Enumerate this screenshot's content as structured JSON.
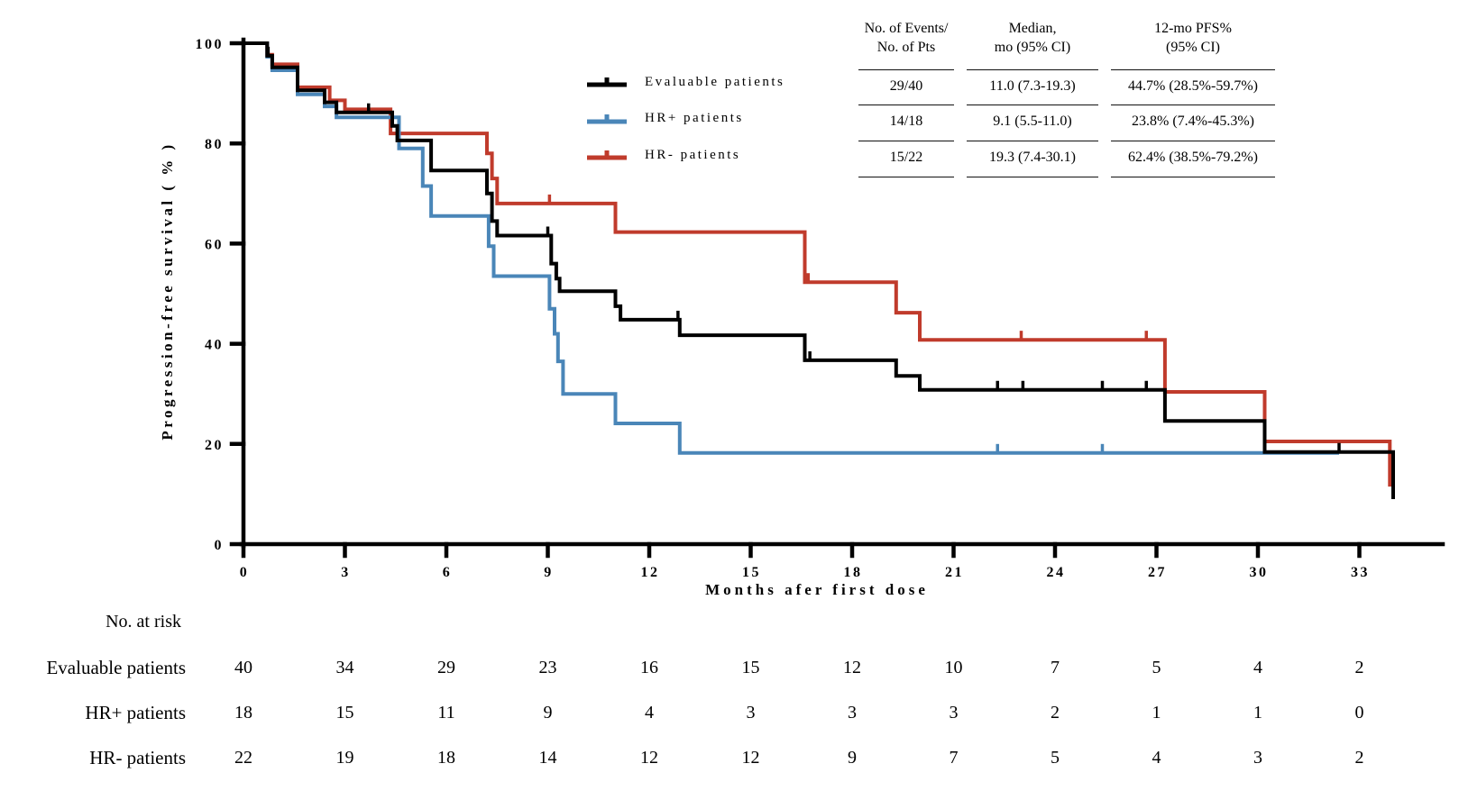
{
  "chart_data": {
    "type": "line",
    "subtype": "kaplan-meier-step",
    "title": "",
    "xlabel": "Months afer first dose",
    "ylabel": "Progression-free survival (%)",
    "xlim": [
      0,
      35.5
    ],
    "ylim": [
      0,
      100
    ],
    "x_ticks": [
      0,
      3,
      6,
      9,
      12,
      15,
      18,
      21,
      24,
      27,
      30,
      33
    ],
    "y_ticks": [
      0,
      20,
      40,
      60,
      80,
      100
    ],
    "grid": false,
    "legend_position": "upper-center-left",
    "axis_color": "#000000",
    "series": [
      {
        "name": "Evaluable patients",
        "color": "#000000",
        "steps": [
          [
            0,
            100
          ],
          [
            0.7,
            100
          ],
          [
            0.7,
            97.5
          ],
          [
            0.85,
            97.5
          ],
          [
            0.85,
            95.2
          ],
          [
            1.6,
            95.2
          ],
          [
            1.6,
            90.6
          ],
          [
            2.4,
            90.6
          ],
          [
            2.4,
            88.2
          ],
          [
            2.75,
            88.2
          ],
          [
            2.75,
            86.2
          ],
          [
            4.4,
            86.2
          ],
          [
            4.4,
            83.5
          ],
          [
            4.55,
            83.5
          ],
          [
            4.55,
            80.6
          ],
          [
            5.55,
            80.6
          ],
          [
            5.55,
            74.6
          ],
          [
            7.2,
            74.6
          ],
          [
            7.2,
            70
          ],
          [
            7.35,
            70
          ],
          [
            7.35,
            64.5
          ],
          [
            7.5,
            64.5
          ],
          [
            7.5,
            61.6
          ],
          [
            9.1,
            61.6
          ],
          [
            9.1,
            56
          ],
          [
            9.25,
            56
          ],
          [
            9.25,
            53
          ],
          [
            9.35,
            53
          ],
          [
            9.35,
            50.5
          ],
          [
            11.0,
            50.5
          ],
          [
            11.0,
            47.5
          ],
          [
            11.15,
            47.5
          ],
          [
            11.15,
            44.8
          ],
          [
            12.9,
            44.8
          ],
          [
            12.9,
            41.7
          ],
          [
            16.6,
            41.7
          ],
          [
            16.6,
            36.7
          ],
          [
            19.3,
            36.7
          ],
          [
            19.3,
            33.6
          ],
          [
            20.0,
            33.6
          ],
          [
            20.0,
            30.8
          ],
          [
            27.25,
            30.8
          ],
          [
            27.25,
            24.6
          ],
          [
            30.2,
            24.6
          ],
          [
            30.2,
            18.4
          ],
          [
            34.0,
            18.4
          ],
          [
            34.0,
            9.0
          ]
        ],
        "censors": [
          [
            0.73,
            97.5
          ],
          [
            3.7,
            86.2
          ],
          [
            9.0,
            61.6
          ],
          [
            12.85,
            44.8
          ],
          [
            16.75,
            36.7
          ],
          [
            22.3,
            30.8
          ],
          [
            23.05,
            30.8
          ],
          [
            25.4,
            30.8
          ],
          [
            26.7,
            30.8
          ],
          [
            32.4,
            18.4
          ]
        ]
      },
      {
        "name": "HR+ patients",
        "color": "#4A86B8",
        "steps": [
          [
            0,
            100
          ],
          [
            0.7,
            100
          ],
          [
            0.7,
            97.3
          ],
          [
            0.85,
            97.3
          ],
          [
            0.85,
            94.6
          ],
          [
            1.6,
            94.6
          ],
          [
            1.6,
            89.8
          ],
          [
            2.4,
            89.8
          ],
          [
            2.4,
            87.4
          ],
          [
            2.75,
            87.4
          ],
          [
            2.75,
            85.2
          ],
          [
            4.6,
            85.2
          ],
          [
            4.6,
            79.0
          ],
          [
            5.3,
            79.0
          ],
          [
            5.3,
            71.5
          ],
          [
            5.55,
            71.5
          ],
          [
            5.55,
            65.5
          ],
          [
            7.25,
            65.5
          ],
          [
            7.25,
            59.5
          ],
          [
            7.4,
            59.5
          ],
          [
            7.4,
            53.5
          ],
          [
            9.05,
            53.5
          ],
          [
            9.05,
            47.0
          ],
          [
            9.2,
            47.0
          ],
          [
            9.2,
            42.0
          ],
          [
            9.3,
            42.0
          ],
          [
            9.3,
            36.5
          ],
          [
            9.45,
            36.5
          ],
          [
            9.45,
            30.0
          ],
          [
            11.0,
            30.0
          ],
          [
            11.0,
            24.1
          ],
          [
            12.9,
            24.1
          ],
          [
            12.9,
            18.2
          ],
          [
            32.4,
            18.2
          ]
        ],
        "censors": [
          [
            22.3,
            18.2
          ],
          [
            25.4,
            18.2
          ]
        ]
      },
      {
        "name": "HR- patients",
        "color": "#C03B2C",
        "steps": [
          [
            0,
            100
          ],
          [
            0.7,
            100
          ],
          [
            0.7,
            97.7
          ],
          [
            0.85,
            97.7
          ],
          [
            0.85,
            95.8
          ],
          [
            1.6,
            95.8
          ],
          [
            1.6,
            91.2
          ],
          [
            2.55,
            91.2
          ],
          [
            2.55,
            88.6
          ],
          [
            3.0,
            88.6
          ],
          [
            3.0,
            86.8
          ],
          [
            4.35,
            86.8
          ],
          [
            4.35,
            82.0
          ],
          [
            7.2,
            82.0
          ],
          [
            7.2,
            78.0
          ],
          [
            7.35,
            78.0
          ],
          [
            7.35,
            73.0
          ],
          [
            7.5,
            73.0
          ],
          [
            7.5,
            68.0
          ],
          [
            11.0,
            68.0
          ],
          [
            11.0,
            62.3
          ],
          [
            16.6,
            62.3
          ],
          [
            16.6,
            52.3
          ],
          [
            19.3,
            52.3
          ],
          [
            19.3,
            46.2
          ],
          [
            20.0,
            46.2
          ],
          [
            20.0,
            40.8
          ],
          [
            27.25,
            40.8
          ],
          [
            27.25,
            30.4
          ],
          [
            30.2,
            30.4
          ],
          [
            30.2,
            20.5
          ],
          [
            33.9,
            20.5
          ],
          [
            33.9,
            11.5
          ]
        ],
        "censors": [
          [
            9.05,
            68.0
          ],
          [
            16.7,
            52.3
          ],
          [
            23.0,
            40.8
          ],
          [
            26.7,
            40.8
          ]
        ]
      }
    ]
  },
  "legend": {
    "items": [
      {
        "label": "Evaluable patients"
      },
      {
        "label": "HR+ patients"
      },
      {
        "label": "HR- patients"
      }
    ]
  },
  "stats_table": {
    "headers": [
      {
        "line1": "No. of Events/",
        "line2": "No. of Pts"
      },
      {
        "line1": "Median,",
        "line2": "mo (95% CI)"
      },
      {
        "line1": "12-mo PFS%",
        "line2": "(95% CI)"
      }
    ],
    "rows": [
      {
        "events": "29/40",
        "median": "11.0 (7.3-19.3)",
        "pfs12": "44.7% (28.5%-59.7%)"
      },
      {
        "events": "14/18",
        "median": "9.1 (5.5-11.0)",
        "pfs12": "23.8% (7.4%-45.3%)"
      },
      {
        "events": "15/22",
        "median": "19.3 (7.4-30.1)",
        "pfs12": "62.4% (38.5%-79.2%)"
      }
    ]
  },
  "axis_titles": {
    "y": "Progression-free survival ( % )",
    "x": "Months afer first dose"
  },
  "at_risk": {
    "title": "No. at risk",
    "months": [
      0,
      3,
      6,
      9,
      12,
      15,
      18,
      21,
      24,
      27,
      30,
      33
    ],
    "rows": [
      {
        "label": "Evaluable patients",
        "counts": [
          "40",
          "34",
          "29",
          "23",
          "16",
          "15",
          "12",
          "10",
          "7",
          "5",
          "4",
          "2"
        ]
      },
      {
        "label": "HR+ patients",
        "counts": [
          "18",
          "15",
          "11",
          "9",
          "4",
          "3",
          "3",
          "3",
          "2",
          "1",
          "1",
          "0"
        ]
      },
      {
        "label": "HR- patients",
        "counts": [
          "22",
          "19",
          "18",
          "14",
          "12",
          "12",
          "9",
          "7",
          "5",
          "4",
          "3",
          "2"
        ]
      }
    ]
  }
}
